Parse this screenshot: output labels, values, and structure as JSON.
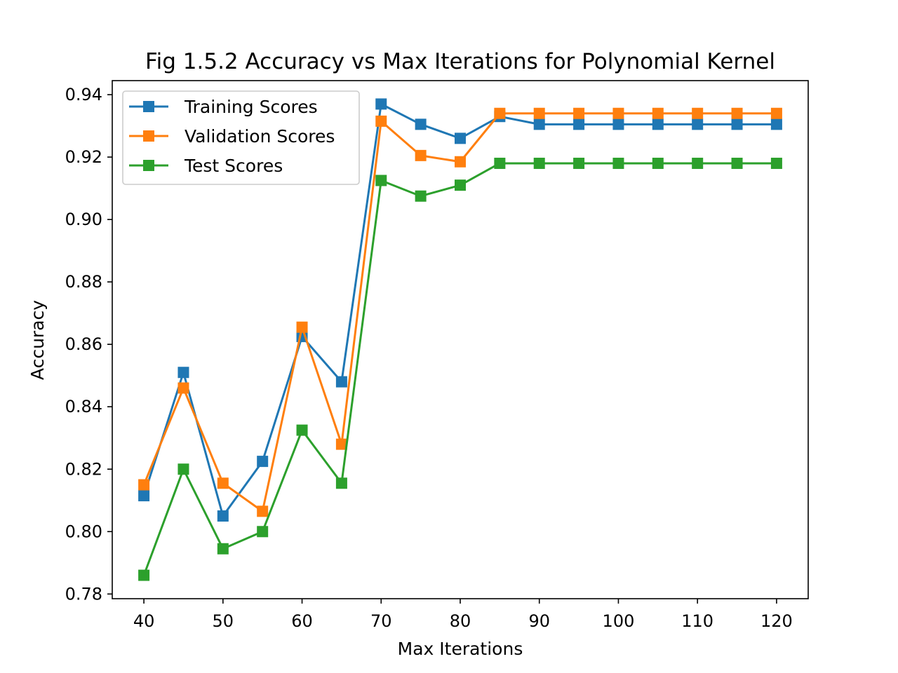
{
  "chart_data": {
    "type": "line",
    "title": "Fig 1.5.2 Accuracy vs Max Iterations for Polynomial Kernel",
    "xlabel": "Max Iterations",
    "ylabel": "Accuracy",
    "x": [
      40,
      45,
      50,
      55,
      60,
      65,
      70,
      75,
      80,
      85,
      90,
      95,
      100,
      105,
      110,
      115,
      120
    ],
    "xlim": [
      36,
      124
    ],
    "ylim": [
      0.7785,
      0.9445
    ],
    "xticks": [
      40,
      50,
      60,
      70,
      80,
      90,
      100,
      110,
      120
    ],
    "xtick_labels": [
      "40",
      "50",
      "60",
      "70",
      "80",
      "90",
      "100",
      "110",
      "120"
    ],
    "yticks": [
      0.78,
      0.8,
      0.82,
      0.84,
      0.86,
      0.88,
      0.9,
      0.92,
      0.94
    ],
    "ytick_labels": [
      "0.78",
      "0.80",
      "0.82",
      "0.84",
      "0.86",
      "0.88",
      "0.90",
      "0.92",
      "0.94"
    ],
    "grid": false,
    "legend_position": "upper-left",
    "marker": "square",
    "series": [
      {
        "name": "Training Scores",
        "color": "#1f77b4",
        "values": [
          0.8115,
          0.851,
          0.805,
          0.8225,
          0.8625,
          0.848,
          0.937,
          0.9305,
          0.926,
          0.933,
          0.9305,
          0.9305,
          0.9305,
          0.9305,
          0.9305,
          0.9305,
          0.9305
        ]
      },
      {
        "name": "Validation Scores",
        "color": "#ff7f0e",
        "values": [
          0.815,
          0.846,
          0.8155,
          0.8065,
          0.8655,
          0.828,
          0.9315,
          0.9205,
          0.9185,
          0.934,
          0.934,
          0.934,
          0.934,
          0.934,
          0.934,
          0.934,
          0.934
        ]
      },
      {
        "name": "Test Scores",
        "color": "#2ca02c",
        "values": [
          0.786,
          0.82,
          0.7945,
          0.8,
          0.8325,
          0.8155,
          0.9125,
          0.9075,
          0.911,
          0.918,
          0.918,
          0.918,
          0.918,
          0.918,
          0.918,
          0.918,
          0.918
        ]
      }
    ]
  }
}
